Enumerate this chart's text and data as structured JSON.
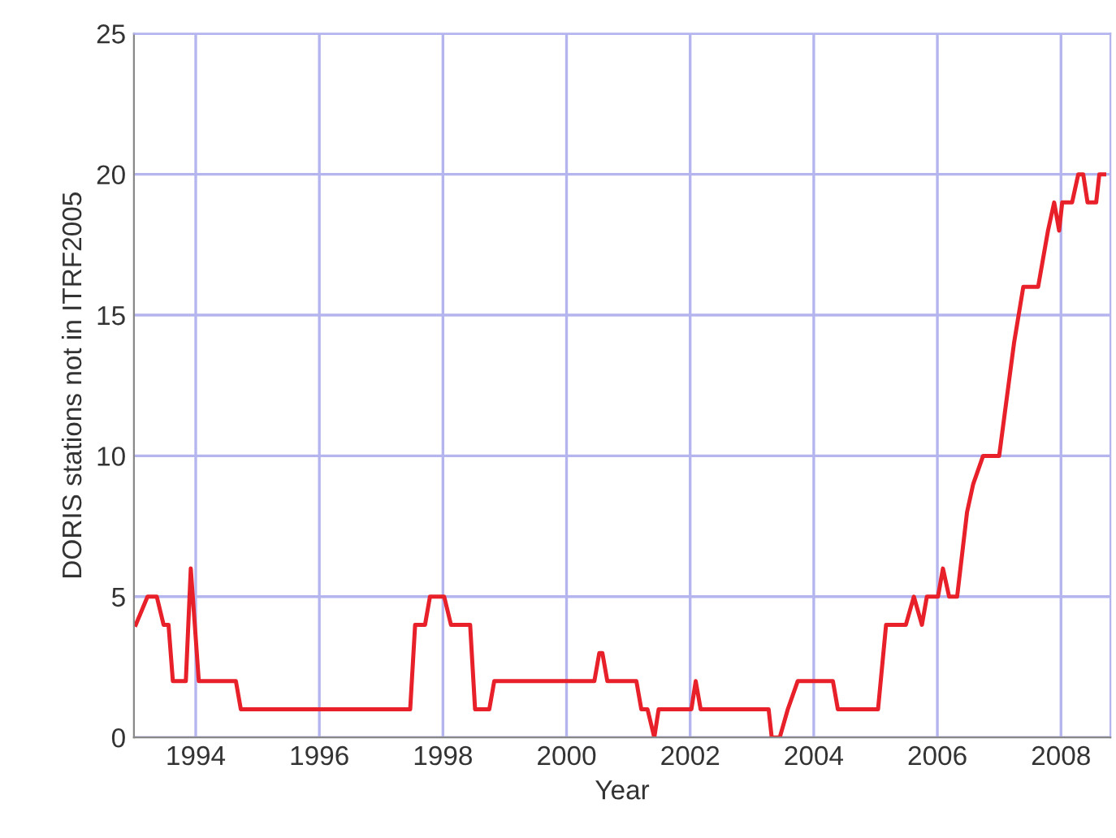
{
  "chart_data": {
    "type": "line",
    "xlabel": "Year",
    "ylabel": "DORIS stations not in ITRF2005",
    "x": [
      1993.03,
      1993.22,
      1993.37,
      1993.48,
      1993.56,
      1993.63,
      1993.84,
      1993.92,
      1994.05,
      1994.65,
      1994.73,
      1997.47,
      1997.55,
      1997.71,
      1997.79,
      1998.02,
      1998.13,
      1998.44,
      1998.52,
      1998.75,
      1998.83,
      2000.45,
      2000.53,
      2000.58,
      2000.66,
      2001.13,
      2001.21,
      2001.31,
      2001.42,
      2001.49,
      2002.02,
      2002.09,
      2002.17,
      2003.27,
      2003.32,
      2003.45,
      2003.58,
      2003.74,
      2004.31,
      2004.39,
      2005.04,
      2005.17,
      2005.49,
      2005.62,
      2005.75,
      2005.83,
      2006.01,
      2006.09,
      2006.19,
      2006.32,
      2006.48,
      2006.58,
      2006.74,
      2007.0,
      2007.24,
      2007.39,
      2007.63,
      2007.79,
      2007.89,
      2007.97,
      2008.02,
      2008.18,
      2008.28,
      2008.36,
      2008.43,
      2008.57,
      2008.62,
      2008.7
    ],
    "series": [
      {
        "color": "#e8202a",
        "values": [
          4,
          5,
          5,
          4,
          4,
          2,
          2,
          6,
          2,
          2,
          1,
          1,
          4,
          4,
          5,
          5,
          4,
          4,
          1,
          1,
          2,
          2,
          3,
          3,
          2,
          2,
          1,
          1,
          0,
          1,
          1,
          2,
          1,
          1,
          0,
          0,
          1,
          2,
          2,
          1,
          1,
          4,
          4,
          5,
          4,
          5,
          5,
          6,
          5,
          5,
          8,
          9,
          10,
          10,
          14,
          16,
          16,
          18,
          19,
          18,
          19,
          19,
          20,
          20,
          19,
          19,
          20,
          20
        ]
      }
    ],
    "xlim": [
      1993.0,
      2008.8
    ],
    "ylim": [
      0,
      25
    ],
    "xticks": [
      1994,
      1996,
      1998,
      2000,
      2002,
      2004,
      2006,
      2008
    ],
    "yticks": [
      0,
      5,
      10,
      15,
      20,
      25
    ],
    "grid": true,
    "marker": "none",
    "line_style": "solid"
  }
}
